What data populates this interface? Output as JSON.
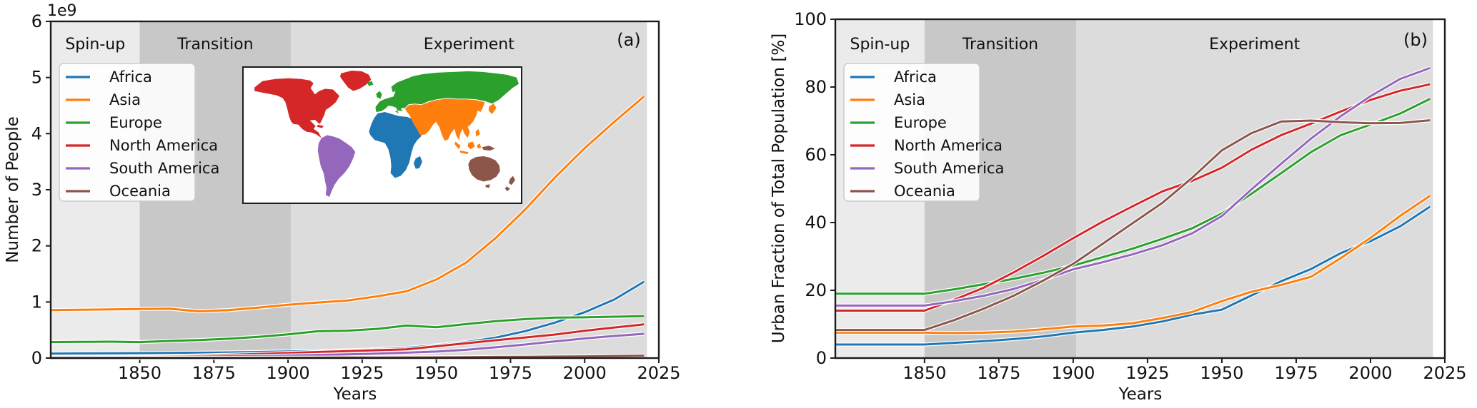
{
  "figure": {
    "background": "#ffffff",
    "spine_color": "#1c1c1c",
    "text_color": "#111111"
  },
  "phases": [
    {
      "label": "Spin-up",
      "start_year": 1820,
      "end_year": 1850,
      "fill": "#ebebeb"
    },
    {
      "label": "Transition",
      "start_year": 1850,
      "end_year": 1901,
      "fill": "#c8c8c8"
    },
    {
      "label": "Experiment",
      "start_year": 1901,
      "end_year": 2021,
      "fill": "#dcdcdc"
    }
  ],
  "legend": {
    "entries": [
      "Africa",
      "Asia",
      "Europe",
      "North America",
      "South America",
      "Oceania"
    ],
    "background": "rgba(255,255,255,0.88)",
    "border": "#cccccc"
  },
  "map_inset": {
    "description": "world map inset, continents colored to match legend",
    "continents": [
      {
        "name": "Africa",
        "color": "#1f77b4"
      },
      {
        "name": "Asia",
        "color": "#ff7f0e"
      },
      {
        "name": "Europe",
        "color": "#2ca02c"
      },
      {
        "name": "North America",
        "color": "#d62728"
      },
      {
        "name": "South America",
        "color": "#9467bd"
      },
      {
        "name": "Oceania",
        "color": "#8c564b"
      }
    ]
  },
  "chart_data": [
    {
      "type": "line",
      "panel_label": "(a)",
      "xlabel": "Years",
      "ylabel": "Number of People",
      "y_offset_text": "1e9",
      "y_unit": "billions of people",
      "xlim": [
        1820,
        2025
      ],
      "ylim": [
        0,
        6
      ],
      "xticks": [
        1850,
        1875,
        1900,
        1925,
        1950,
        1975,
        2000,
        2025
      ],
      "yticks": [
        0,
        1,
        2,
        3,
        4,
        5,
        6
      ],
      "legend_position": "upper left",
      "x": [
        1820,
        1830,
        1840,
        1850,
        1860,
        1870,
        1880,
        1890,
        1900,
        1910,
        1920,
        1930,
        1940,
        1950,
        1960,
        1970,
        1980,
        1990,
        2000,
        2010,
        2020
      ],
      "series": [
        {
          "name": "Africa",
          "color": "#1f77b4",
          "values": [
            0.08,
            0.082,
            0.084,
            0.088,
            0.092,
            0.095,
            0.1,
            0.108,
            0.118,
            0.126,
            0.136,
            0.156,
            0.182,
            0.228,
            0.285,
            0.365,
            0.48,
            0.632,
            0.818,
            1.044,
            1.36
          ]
        },
        {
          "name": "Asia",
          "color": "#ff7f0e",
          "values": [
            0.855,
            0.86,
            0.868,
            0.875,
            0.88,
            0.832,
            0.855,
            0.9,
            0.95,
            0.99,
            1.025,
            1.1,
            1.19,
            1.4,
            1.7,
            2.14,
            2.65,
            3.22,
            3.74,
            4.21,
            4.66
          ]
        },
        {
          "name": "Europe",
          "color": "#2ca02c",
          "values": [
            0.285,
            0.288,
            0.292,
            0.285,
            0.305,
            0.322,
            0.345,
            0.378,
            0.422,
            0.478,
            0.488,
            0.52,
            0.58,
            0.55,
            0.605,
            0.657,
            0.694,
            0.721,
            0.726,
            0.737,
            0.748
          ]
        },
        {
          "name": "North America",
          "color": "#d62728",
          "values": [
            0.012,
            0.016,
            0.022,
            0.028,
            0.036,
            0.046,
            0.058,
            0.073,
            0.09,
            0.108,
            0.124,
            0.14,
            0.155,
            0.21,
            0.265,
            0.318,
            0.368,
            0.42,
            0.486,
            0.545,
            0.6
          ]
        },
        {
          "name": "South America",
          "color": "#9467bd",
          "values": [
            0.012,
            0.014,
            0.016,
            0.018,
            0.022,
            0.027,
            0.032,
            0.038,
            0.045,
            0.056,
            0.066,
            0.079,
            0.096,
            0.116,
            0.148,
            0.192,
            0.242,
            0.297,
            0.35,
            0.394,
            0.432
          ]
        },
        {
          "name": "Oceania",
          "color": "#8c564b",
          "values": [
            0.002,
            0.002,
            0.002,
            0.002,
            0.003,
            0.003,
            0.004,
            0.005,
            0.006,
            0.007,
            0.009,
            0.01,
            0.011,
            0.013,
            0.016,
            0.02,
            0.023,
            0.027,
            0.031,
            0.037,
            0.043
          ]
        }
      ]
    },
    {
      "type": "line",
      "panel_label": "(b)",
      "xlabel": "Years",
      "ylabel": "Urban Fraction of Total Population [%]",
      "y_offset_text": "",
      "y_unit": "percent",
      "xlim": [
        1820,
        2025
      ],
      "ylim": [
        0,
        100
      ],
      "xticks": [
        1850,
        1875,
        1900,
        1925,
        1950,
        1975,
        2000,
        2025
      ],
      "yticks": [
        0,
        20,
        40,
        60,
        80,
        100
      ],
      "legend_position": "upper left",
      "x": [
        1820,
        1830,
        1840,
        1850,
        1860,
        1870,
        1880,
        1890,
        1900,
        1910,
        1920,
        1930,
        1940,
        1950,
        1960,
        1970,
        1980,
        1990,
        2000,
        2010,
        2020
      ],
      "series": [
        {
          "name": "Africa",
          "color": "#1f77b4",
          "values": [
            4.0,
            4.0,
            4.0,
            4.0,
            4.5,
            5.0,
            5.6,
            6.4,
            7.5,
            8.3,
            9.3,
            10.8,
            12.8,
            14.3,
            18.5,
            22.7,
            26.3,
            31.0,
            34.5,
            38.9,
            44.7
          ]
        },
        {
          "name": "Asia",
          "color": "#ff7f0e",
          "values": [
            7.5,
            7.5,
            7.5,
            7.5,
            7.4,
            7.5,
            7.8,
            8.5,
            9.3,
            9.6,
            10.3,
            11.8,
            13.6,
            16.8,
            19.6,
            21.6,
            24.0,
            29.5,
            35.5,
            42.0,
            47.9
          ]
        },
        {
          "name": "Europe",
          "color": "#2ca02c",
          "values": [
            19.0,
            19.0,
            19.0,
            19.0,
            20.3,
            21.8,
            23.4,
            25.2,
            27.3,
            29.8,
            32.3,
            35.2,
            38.3,
            42.7,
            48.5,
            54.6,
            60.8,
            65.8,
            68.9,
            72.2,
            76.5
          ]
        },
        {
          "name": "North America",
          "color": "#d62728",
          "values": [
            14.0,
            14.0,
            14.0,
            14.0,
            17.2,
            20.8,
            25.3,
            30.2,
            35.4,
            40.3,
            44.8,
            49.2,
            52.3,
            56.2,
            61.5,
            65.8,
            69.2,
            72.8,
            76.2,
            78.9,
            80.8
          ]
        },
        {
          "name": "South America",
          "color": "#9467bd",
          "values": [
            15.5,
            15.5,
            15.5,
            15.5,
            16.8,
            18.4,
            20.4,
            23.1,
            26.2,
            28.3,
            30.6,
            33.3,
            36.8,
            41.9,
            49.8,
            57.4,
            64.8,
            71.4,
            77.3,
            82.4,
            85.6
          ]
        },
        {
          "name": "Oceania",
          "color": "#8c564b",
          "values": [
            8.3,
            8.3,
            8.3,
            8.3,
            11.2,
            14.6,
            18.4,
            22.9,
            27.8,
            33.8,
            39.8,
            45.8,
            53.2,
            61.3,
            66.4,
            69.8,
            70.1,
            69.6,
            69.3,
            69.4,
            70.2
          ]
        }
      ]
    }
  ]
}
